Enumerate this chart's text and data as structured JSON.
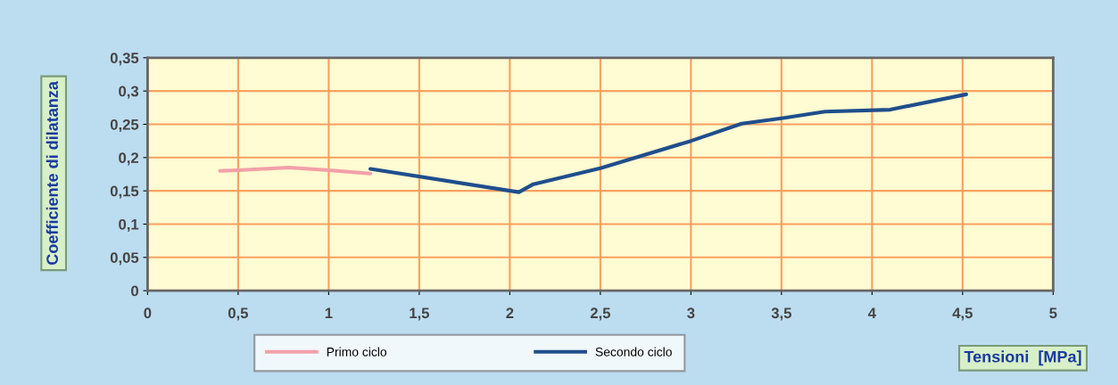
{
  "chart_data": {
    "type": "line",
    "xlabel": "Tensioni  [MPa]",
    "ylabel": "Coefficiente di dilatanza",
    "xlim": [
      0,
      5
    ],
    "xticks": [
      0,
      {
        "value": 0.5,
        "label": "0,5"
      },
      1,
      {
        "value": 1.5,
        "label": "1,5"
      },
      2,
      {
        "value": 2.5,
        "label": "2,5"
      },
      3,
      {
        "value": 3.5,
        "label": "3,5"
      },
      4,
      {
        "value": 4.5,
        "label": "4,5"
      },
      5
    ],
    "ylim": [
      0,
      0.35
    ],
    "yticks": [
      0,
      {
        "value": 0.05,
        "label": "0,05"
      },
      {
        "value": 0.1,
        "label": "0,1"
      },
      {
        "value": 0.15,
        "label": "0,15"
      },
      {
        "value": 0.2,
        "label": "0,2"
      },
      {
        "value": 0.25,
        "label": "0,25"
      },
      {
        "value": 0.3,
        "label": "0,3"
      },
      {
        "value": 0.35,
        "label": "0,35"
      }
    ],
    "grid": true,
    "legend": "bottom",
    "marker": "none",
    "line_style": "solid",
    "series": [
      {
        "name": "Primo ciclo",
        "color": "#f2a0a8",
        "x": [
          0.4,
          0.5,
          0.78,
          1.0,
          1.23
        ],
        "values": [
          0.18,
          0.181,
          0.185,
          0.181,
          0.176
        ]
      },
      {
        "name": "Secondo ciclo",
        "color": "#1f4e8c",
        "x": [
          1.23,
          2.05,
          2.13,
          2.5,
          3.0,
          3.28,
          3.5,
          3.74,
          4.1,
          4.52
        ],
        "values": [
          0.183,
          0.148,
          0.16,
          0.184,
          0.225,
          0.251,
          0.259,
          0.269,
          0.272,
          0.295
        ]
      }
    ]
  }
}
